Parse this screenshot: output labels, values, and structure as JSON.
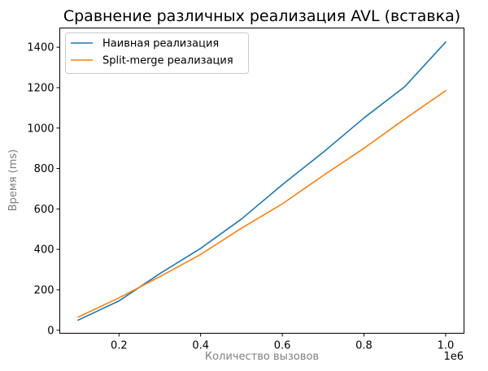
{
  "chart_data": {
    "type": "line",
    "title": "Сравнение различных реализация AVL (вставка)",
    "xlabel": "Количество вызовов",
    "ylabel": "Время (ms)",
    "x_offset_label": "1e6",
    "x": [
      0.1,
      0.2,
      0.3,
      0.4,
      0.5,
      0.6,
      0.7,
      0.8,
      0.9,
      1.0
    ],
    "xlim": [
      0.055,
      1.045
    ],
    "ylim": [
      -15,
      1495
    ],
    "xticks": [
      0.2,
      0.4,
      0.6,
      0.8,
      1.0
    ],
    "xtick_labels": [
      "0.2",
      "0.4",
      "0.6",
      "0.8",
      "1.0"
    ],
    "yticks": [
      0,
      200,
      400,
      600,
      800,
      1000,
      1200,
      1400
    ],
    "ytick_labels": [
      "0",
      "200",
      "400",
      "600",
      "800",
      "1000",
      "1200",
      "1400"
    ],
    "grid": false,
    "legend_position": "top-left",
    "series": [
      {
        "name": "Наивная реализация",
        "color": "#1f77b4",
        "values": [
          50,
          145,
          280,
          405,
          550,
          720,
          880,
          1050,
          1205,
          1425
        ]
      },
      {
        "name": "Split-merge реализация",
        "color": "#ff7f0e",
        "values": [
          65,
          160,
          265,
          375,
          505,
          625,
          765,
          900,
          1045,
          1185
        ]
      }
    ]
  }
}
